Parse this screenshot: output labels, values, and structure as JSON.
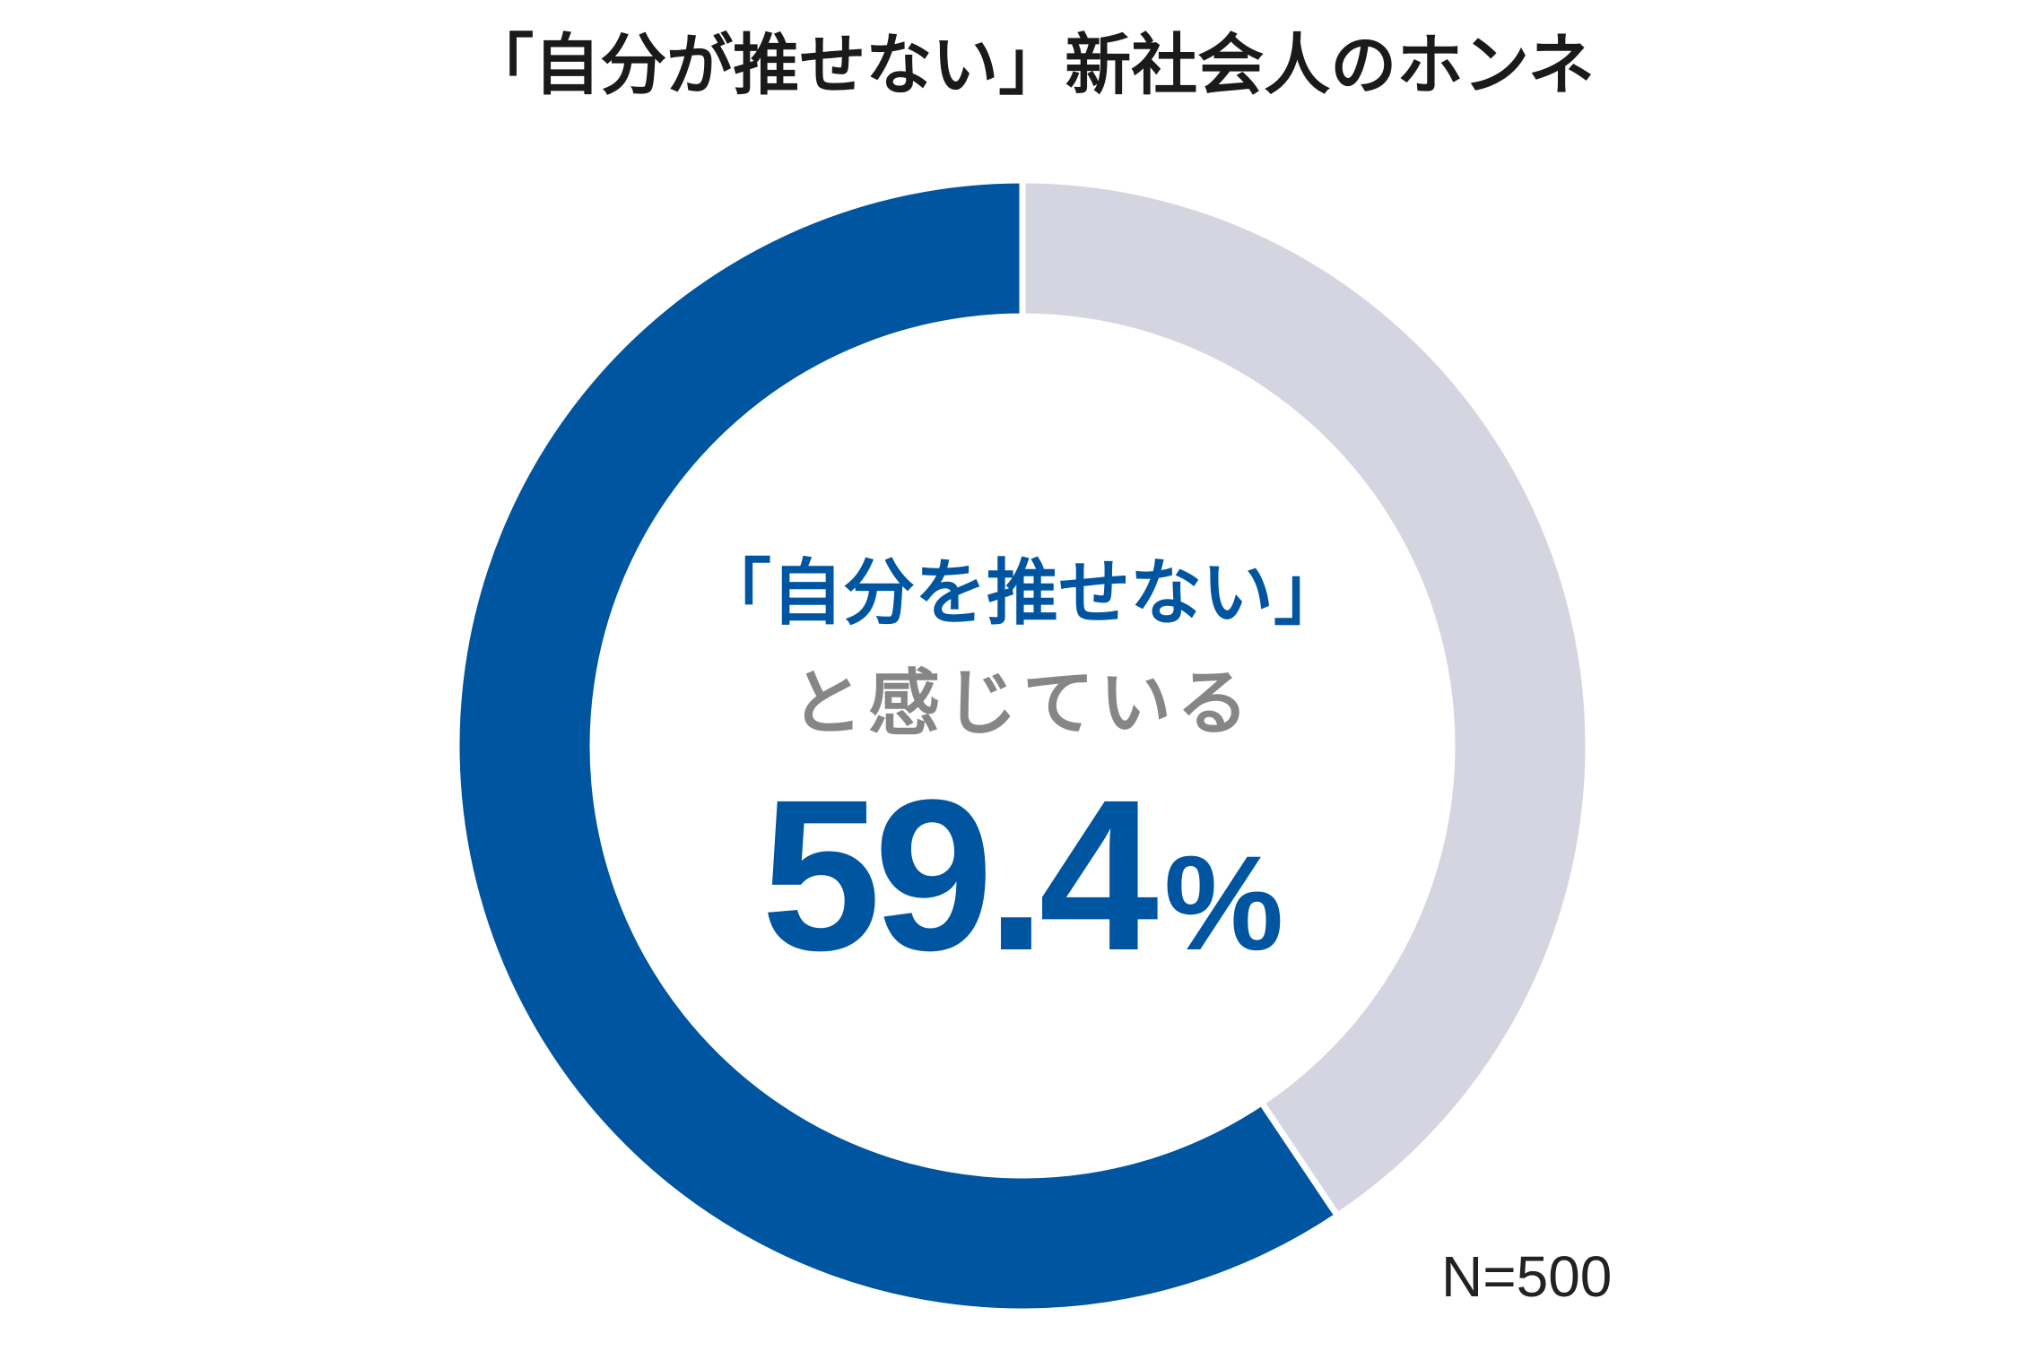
{
  "chart_data": {
    "type": "pie",
    "style": "donut",
    "title": "「自分が推せない」新社会人のホンネ",
    "values": [
      59.4,
      40.6
    ],
    "colors": [
      "#0055a0",
      "#d5d5e2"
    ],
    "center_label": {
      "line1": "「自分を推せない」",
      "line2": "と感じている",
      "value": "59.4",
      "unit": "%"
    },
    "note": "N=500"
  },
  "colors": {
    "accent_blue": "#0055a0",
    "slice_gray": "#d5d5e2",
    "label_gray": "#868686",
    "text_dark": "#1a1a1a",
    "separator": "#ffffff"
  }
}
